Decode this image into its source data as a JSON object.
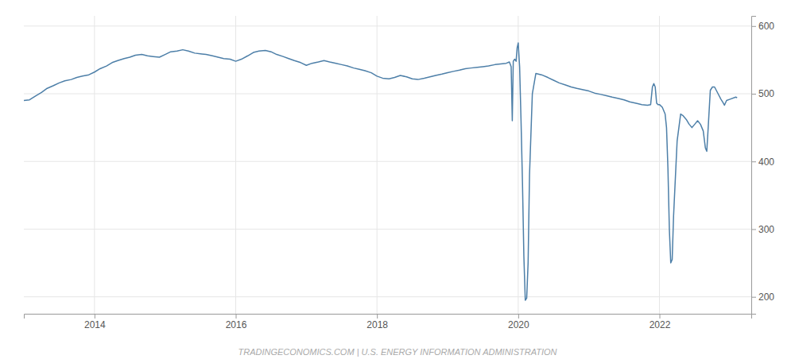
{
  "chart_data": {
    "type": "line",
    "color": "#4d7fa8",
    "grid": true,
    "annotations": [
      "TRADINGECONOMICS.COM | U.S. ENERGY INFORMATION ADMINISTRATION"
    ],
    "xlim": [
      2013.0,
      2023.3
    ],
    "ylim": [
      175,
      615
    ],
    "xticks": [
      2014,
      2016,
      2018,
      2020,
      2022
    ],
    "yticks": [
      200,
      300,
      400,
      500,
      600
    ],
    "x": [
      2013.0,
      2013.08,
      2013.17,
      2013.25,
      2013.33,
      2013.42,
      2013.5,
      2013.58,
      2013.67,
      2013.75,
      2013.83,
      2013.92,
      2014.0,
      2014.08,
      2014.17,
      2014.25,
      2014.33,
      2014.42,
      2014.5,
      2014.58,
      2014.67,
      2014.75,
      2014.83,
      2014.92,
      2015.0,
      2015.08,
      2015.17,
      2015.25,
      2015.33,
      2015.42,
      2015.5,
      2015.58,
      2015.67,
      2015.75,
      2015.83,
      2015.92,
      2016.0,
      2016.08,
      2016.17,
      2016.25,
      2016.33,
      2016.42,
      2016.5,
      2016.58,
      2016.67,
      2016.75,
      2016.83,
      2016.92,
      2017.0,
      2017.08,
      2017.17,
      2017.25,
      2017.33,
      2017.42,
      2017.5,
      2017.58,
      2017.67,
      2017.75,
      2017.83,
      2017.92,
      2018.0,
      2018.08,
      2018.17,
      2018.25,
      2018.33,
      2018.42,
      2018.5,
      2018.58,
      2018.67,
      2018.75,
      2018.83,
      2018.92,
      2019.0,
      2019.08,
      2019.17,
      2019.25,
      2019.33,
      2019.42,
      2019.5,
      2019.58,
      2019.67,
      2019.75,
      2019.83,
      2019.875,
      2019.9,
      2019.916,
      2019.93,
      2019.95,
      2019.97,
      2019.985,
      2020.0,
      2020.02,
      2020.04,
      2020.06,
      2020.08,
      2020.1,
      2020.12,
      2020.14,
      2020.16,
      2020.2,
      2020.25,
      2020.33,
      2020.42,
      2020.5,
      2020.58,
      2020.67,
      2020.75,
      2020.83,
      2020.92,
      2021.0,
      2021.08,
      2021.17,
      2021.25,
      2021.33,
      2021.42,
      2021.5,
      2021.58,
      2021.67,
      2021.75,
      2021.83,
      2021.875,
      2021.9,
      2021.92,
      2021.94,
      2021.96,
      2021.98,
      2022.0,
      2022.04,
      2022.08,
      2022.1,
      2022.12,
      2022.14,
      2022.16,
      2022.18,
      2022.2,
      2022.25,
      2022.3,
      2022.33,
      2022.38,
      2022.42,
      2022.46,
      2022.5,
      2022.54,
      2022.58,
      2022.62,
      2022.65,
      2022.67,
      2022.69,
      2022.72,
      2022.75,
      2022.78,
      2022.83,
      2022.87,
      2022.9,
      2022.92,
      2022.95,
      2023.0,
      2023.08,
      2023.1
    ],
    "values": [
      490,
      491,
      497,
      502,
      508,
      512,
      516,
      519,
      521,
      524,
      526,
      528,
      532,
      537,
      541,
      546,
      549,
      552,
      554,
      557,
      558,
      556,
      555,
      554,
      558,
      562,
      563,
      565,
      563,
      560,
      559,
      558,
      556,
      554,
      552,
      551,
      548,
      551,
      556,
      561,
      563,
      564,
      562,
      558,
      555,
      552,
      549,
      546,
      542,
      545,
      547,
      549,
      547,
      545,
      543,
      541,
      538,
      536,
      534,
      531,
      526,
      523,
      522,
      524,
      527,
      525,
      522,
      521,
      523,
      525,
      527,
      529,
      531,
      533,
      535,
      537,
      538,
      539,
      540,
      541,
      543,
      544,
      545,
      547,
      540,
      460,
      548,
      551,
      548,
      568,
      575,
      540,
      460,
      370,
      260,
      195,
      198,
      250,
      380,
      500,
      530,
      528,
      524,
      520,
      516,
      513,
      510,
      508,
      506,
      504,
      501,
      499,
      497,
      495,
      493,
      491,
      488,
      486,
      484,
      483,
      484,
      510,
      515,
      510,
      486,
      484,
      484,
      480,
      470,
      450,
      390,
      300,
      250,
      255,
      320,
      430,
      470,
      468,
      462,
      455,
      450,
      455,
      460,
      455,
      445,
      420,
      415,
      450,
      505,
      510,
      510,
      500,
      492,
      487,
      483,
      490,
      492,
      495,
      494
    ]
  }
}
